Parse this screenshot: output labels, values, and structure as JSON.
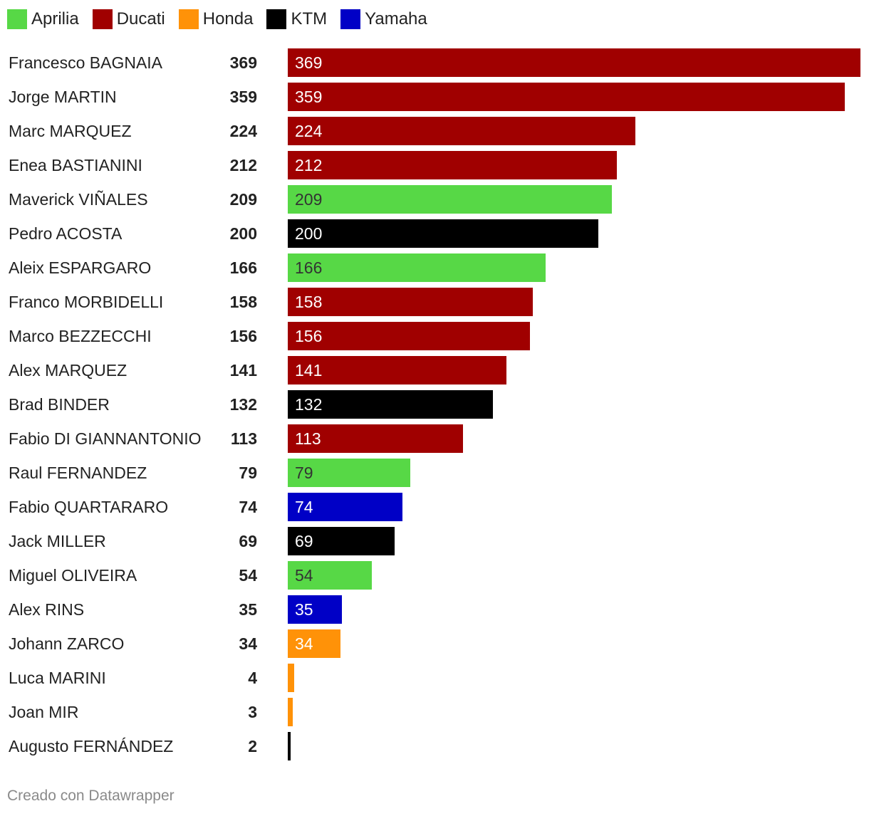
{
  "legend": [
    {
      "name": "Aprilia",
      "color": "#57d846"
    },
    {
      "name": "Ducati",
      "color": "#a00000"
    },
    {
      "name": "Honda",
      "color": "#ff9208"
    },
    {
      "name": "KTM",
      "color": "#000000"
    },
    {
      "name": "Yamaha",
      "color": "#0000c6"
    }
  ],
  "chart_data": {
    "type": "bar",
    "orientation": "horizontal",
    "categories": [
      "Francesco BAGNAIA",
      "Jorge MARTIN",
      "Marc MARQUEZ",
      "Enea BASTIANINI",
      "Maverick VIÑALES",
      "Pedro ACOSTA",
      "Aleix ESPARGARO",
      "Franco MORBIDELLI",
      "Marco BEZZECCHI",
      "Alex MARQUEZ",
      "Brad BINDER",
      "Fabio DI GIANNANTONIO",
      "Raul FERNANDEZ",
      "Fabio QUARTARARO",
      "Jack MILLER",
      "Miguel OLIVEIRA",
      "Alex RINS",
      "Johann ZARCO",
      "Luca MARINI",
      "Joan MIR",
      "Augusto FERNÁNDEZ"
    ],
    "values": [
      369,
      359,
      224,
      212,
      209,
      200,
      166,
      158,
      156,
      141,
      132,
      113,
      79,
      74,
      69,
      54,
      35,
      34,
      4,
      3,
      2
    ],
    "manufacturers": [
      "Ducati",
      "Ducati",
      "Ducati",
      "Ducati",
      "Aprilia",
      "KTM",
      "Aprilia",
      "Ducati",
      "Ducati",
      "Ducati",
      "KTM",
      "Ducati",
      "Aprilia",
      "Yamaha",
      "KTM",
      "Aprilia",
      "Yamaha",
      "Honda",
      "Honda",
      "Honda",
      "KTM"
    ],
    "xlim": [
      0,
      369
    ],
    "show_inside_label_min": 10,
    "grid": false,
    "legend_position": "top-left"
  },
  "footer": "Creado con Datawrapper"
}
